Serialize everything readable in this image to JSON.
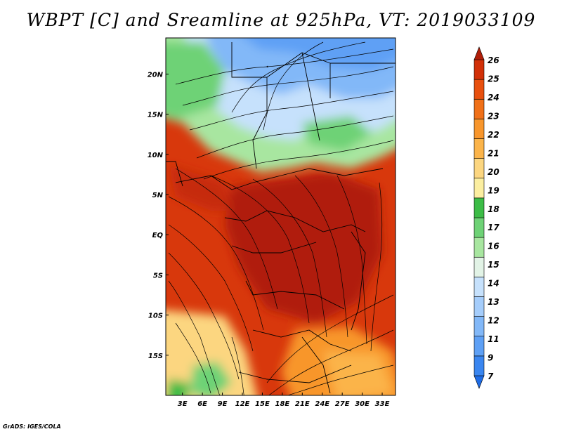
{
  "title": "WBPT [C] and Sreamline at 925hPa, VT: 2019033109",
  "footer": "GrADS: IGES/COLA",
  "lat_labels": [
    "20N",
    "15N",
    "10N",
    "5N",
    "EQ",
    "5S",
    "10S",
    "15S"
  ],
  "lat_values": [
    20,
    15,
    10,
    5,
    0,
    -5,
    -10,
    -15
  ],
  "lon_labels": [
    "3E",
    "6E",
    "9E",
    "12E",
    "15E",
    "18E",
    "21E",
    "24E",
    "27E",
    "30E",
    "33E"
  ],
  "lon_values": [
    3,
    6,
    9,
    12,
    15,
    18,
    21,
    24,
    27,
    30,
    33
  ],
  "map_extent": {
    "lon_min": 0.5,
    "lon_max": 35,
    "lat_min": -20,
    "lat_max": 24.5
  },
  "colorbar": {
    "labels": [
      "7",
      "9",
      "11",
      "12",
      "13",
      "14",
      "15",
      "16",
      "17",
      "18",
      "19",
      "20",
      "21",
      "22",
      "23",
      "24",
      "25",
      "26"
    ],
    "colors": [
      "#1e6ce6",
      "#3a86f0",
      "#5ea0f5",
      "#82b8f8",
      "#a5cdfb",
      "#c6e1fc",
      "#e2f3e6",
      "#a8e6a0",
      "#6ed276",
      "#3cbc46",
      "#fbeea0",
      "#fcd680",
      "#fbb44a",
      "#f8962c",
      "#f07018",
      "#e8500e",
      "#d23008",
      "#b01e08"
    ]
  }
}
